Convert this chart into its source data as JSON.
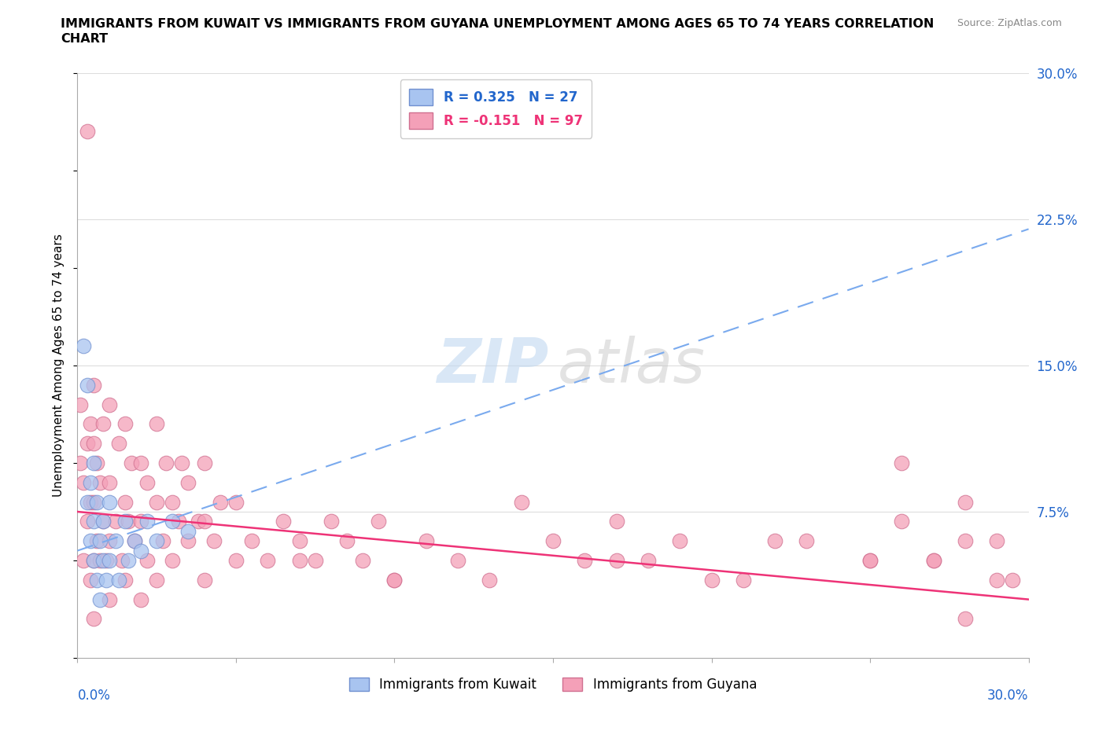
{
  "title_line1": "IMMIGRANTS FROM KUWAIT VS IMMIGRANTS FROM GUYANA UNEMPLOYMENT AMONG AGES 65 TO 74 YEARS CORRELATION",
  "title_line2": "CHART",
  "source": "Source: ZipAtlas.com",
  "ylabel": "Unemployment Among Ages 65 to 74 years",
  "xlim": [
    0,
    0.3
  ],
  "ylim": [
    0,
    0.3
  ],
  "kuwait_color": "#a8c4f0",
  "kuwait_edge": "#7090d0",
  "guyana_color": "#f4a0b8",
  "guyana_edge": "#d07090",
  "trend_kuwait_color": "#7aaaee",
  "trend_guyana_color": "#ee3377",
  "kuwait_R": 0.325,
  "kuwait_N": 27,
  "guyana_R": -0.151,
  "guyana_N": 97,
  "kuwait_label": "Immigrants from Kuwait",
  "guyana_label": "Immigrants from Guyana",
  "ytick_color": "#2266cc",
  "xtick_label_color": "#2266cc",
  "legend_text_colors": [
    "#2266cc",
    "#ee3377"
  ],
  "watermark_zip_color": "#c0d8f0",
  "watermark_atlas_color": "#c8c8c8",
  "kuwait_x": [
    0.002,
    0.003,
    0.003,
    0.004,
    0.004,
    0.005,
    0.005,
    0.005,
    0.006,
    0.006,
    0.007,
    0.007,
    0.008,
    0.008,
    0.009,
    0.01,
    0.01,
    0.012,
    0.013,
    0.015,
    0.016,
    0.018,
    0.02,
    0.022,
    0.025,
    0.03,
    0.035
  ],
  "kuwait_y": [
    0.16,
    0.14,
    0.08,
    0.06,
    0.09,
    0.05,
    0.07,
    0.1,
    0.04,
    0.08,
    0.03,
    0.06,
    0.05,
    0.07,
    0.04,
    0.05,
    0.08,
    0.06,
    0.04,
    0.07,
    0.05,
    0.06,
    0.055,
    0.07,
    0.06,
    0.07,
    0.065
  ],
  "guyana_x": [
    0.001,
    0.001,
    0.002,
    0.002,
    0.003,
    0.003,
    0.003,
    0.004,
    0.004,
    0.004,
    0.005,
    0.005,
    0.005,
    0.005,
    0.005,
    0.006,
    0.006,
    0.007,
    0.007,
    0.008,
    0.008,
    0.009,
    0.01,
    0.01,
    0.01,
    0.01,
    0.012,
    0.013,
    0.014,
    0.015,
    0.015,
    0.015,
    0.016,
    0.017,
    0.018,
    0.02,
    0.02,
    0.02,
    0.022,
    0.022,
    0.025,
    0.025,
    0.025,
    0.027,
    0.028,
    0.03,
    0.03,
    0.032,
    0.033,
    0.035,
    0.035,
    0.038,
    0.04,
    0.04,
    0.04,
    0.043,
    0.045,
    0.05,
    0.05,
    0.055,
    0.06,
    0.065,
    0.07,
    0.075,
    0.08,
    0.085,
    0.09,
    0.095,
    0.1,
    0.11,
    0.12,
    0.13,
    0.15,
    0.16,
    0.17,
    0.18,
    0.2,
    0.22,
    0.25,
    0.26,
    0.27,
    0.28,
    0.28,
    0.29,
    0.295,
    0.29,
    0.28,
    0.27,
    0.26,
    0.25,
    0.23,
    0.21,
    0.19,
    0.17,
    0.14,
    0.1,
    0.07
  ],
  "guyana_y": [
    0.1,
    0.13,
    0.05,
    0.09,
    0.27,
    0.07,
    0.11,
    0.04,
    0.08,
    0.12,
    0.02,
    0.05,
    0.08,
    0.11,
    0.14,
    0.06,
    0.1,
    0.05,
    0.09,
    0.07,
    0.12,
    0.05,
    0.03,
    0.06,
    0.09,
    0.13,
    0.07,
    0.11,
    0.05,
    0.04,
    0.08,
    0.12,
    0.07,
    0.1,
    0.06,
    0.03,
    0.07,
    0.1,
    0.05,
    0.09,
    0.04,
    0.08,
    0.12,
    0.06,
    0.1,
    0.05,
    0.08,
    0.07,
    0.1,
    0.06,
    0.09,
    0.07,
    0.04,
    0.07,
    0.1,
    0.06,
    0.08,
    0.05,
    0.08,
    0.06,
    0.05,
    0.07,
    0.06,
    0.05,
    0.07,
    0.06,
    0.05,
    0.07,
    0.04,
    0.06,
    0.05,
    0.04,
    0.06,
    0.05,
    0.07,
    0.05,
    0.04,
    0.06,
    0.05,
    0.1,
    0.05,
    0.08,
    0.02,
    0.06,
    0.04,
    0.04,
    0.06,
    0.05,
    0.07,
    0.05,
    0.06,
    0.04,
    0.06,
    0.05,
    0.08,
    0.04,
    0.05
  ],
  "kuwait_trend_x": [
    0.0,
    0.3
  ],
  "kuwait_trend_y": [
    0.055,
    0.22
  ],
  "guyana_trend_x": [
    0.0,
    0.3
  ],
  "guyana_trend_y": [
    0.075,
    0.03
  ]
}
